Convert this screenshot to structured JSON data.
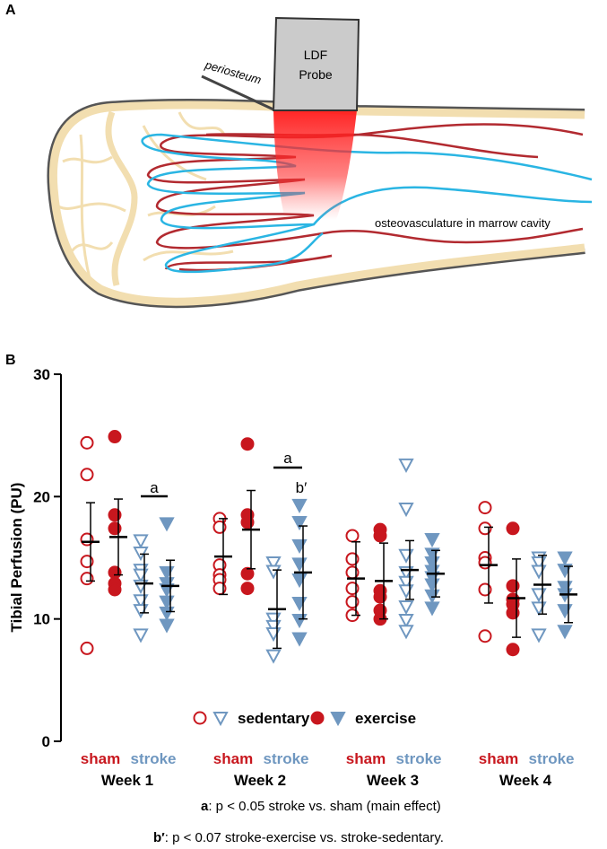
{
  "panel_a": {
    "label": "A",
    "probe_lines": [
      "LDF",
      "Probe"
    ],
    "periosteum": "periosteum",
    "caption": "osteovasculature in marrow cavity"
  },
  "panel_b": {
    "label": "B"
  },
  "chart_data": {
    "type": "dot-plot",
    "y_label": "Tibial Perfusion (PU)",
    "ylim": [
      0,
      30
    ],
    "yticks": [
      0,
      10,
      20,
      30
    ],
    "categories": [
      "Week 1",
      "Week 2",
      "Week 3",
      "Week 4"
    ],
    "subgroups": [
      {
        "label": "sham",
        "color": "#c8171e"
      },
      {
        "label": "stroke",
        "color": "#6f97c0"
      }
    ],
    "legend": [
      {
        "label": "sedentary",
        "filled": false
      },
      {
        "label": "exercise",
        "filled": true
      }
    ],
    "series": [
      {
        "marker": "circle",
        "filled": false,
        "color": "#c8171e",
        "points": [
          [
            24.4,
            21.8,
            16.5,
            14.7,
            13.3,
            7.6
          ],
          [
            18.2,
            17.5,
            14.4,
            13.6,
            13.2,
            12.5
          ],
          [
            16.8,
            14.9,
            13.8,
            12.5,
            11.4,
            10.3
          ],
          [
            19.1,
            17.4,
            15.0,
            14.6,
            12.4,
            8.6
          ]
        ],
        "mean": [
          16.3,
          15.1,
          13.3,
          14.4
        ],
        "sd": [
          3.2,
          3.1,
          3.0,
          3.1
        ]
      },
      {
        "marker": "circle",
        "filled": true,
        "color": "#c8171e",
        "points": [
          [
            24.9,
            18.5,
            17.4,
            13.8,
            12.9,
            12.4
          ],
          [
            24.3,
            18.5,
            17.9,
            13.7,
            12.5
          ],
          [
            17.3,
            16.8,
            12.3,
            11.8,
            10.7,
            10.0
          ],
          [
            17.4,
            12.7,
            11.6,
            11.2,
            10.5,
            7.5
          ]
        ],
        "mean": [
          16.7,
          17.3,
          13.1,
          11.7
        ],
        "sd": [
          3.1,
          3.2,
          3.1,
          3.2
        ]
      },
      {
        "marker": "triangle",
        "filled": false,
        "color": "#6f97c0",
        "points": [
          [
            16.4,
            15.4,
            14.0,
            13.6,
            12.7,
            11.5,
            10.7,
            8.7
          ],
          [
            14.6,
            13.9,
            10.0,
            9.4,
            8.8,
            7.0
          ],
          [
            22.6,
            19.0,
            15.2,
            13.8,
            13.0,
            12.3,
            11.0,
            9.9,
            9.0
          ],
          [
            15.0,
            14.6,
            13.9,
            12.0,
            10.9,
            8.7
          ]
        ],
        "mean": [
          12.9,
          10.8,
          14.0,
          12.8
        ],
        "sd": [
          2.4,
          3.2,
          2.4,
          2.4
        ]
      },
      {
        "marker": "triangle",
        "filled": true,
        "color": "#6f97c0",
        "points": [
          [
            17.8,
            13.8,
            12.9,
            12.4,
            11.4,
            10.5,
            9.5
          ],
          [
            19.3,
            17.9,
            16.0,
            14.5,
            13.2,
            11.3,
            9.9,
            8.4
          ],
          [
            16.5,
            15.3,
            14.6,
            13.9,
            13.4,
            12.8,
            11.9,
            10.9
          ],
          [
            15.0,
            14.0,
            12.6,
            12.0,
            10.7,
            9.0
          ]
        ],
        "mean": [
          12.7,
          13.8,
          13.7,
          12.0
        ],
        "sd": [
          2.1,
          3.8,
          1.9,
          2.3
        ]
      }
    ],
    "annotations": [
      {
        "label": "a"
      },
      {
        "label": "a"
      },
      {
        "label": "b′"
      }
    ],
    "footnotes": [
      {
        "key": "a",
        "text": ": p < 0.05 stroke vs. sham (main effect)"
      },
      {
        "key": "b′",
        "text": ": p < 0.07 stroke-exercise vs. stroke-sedentary."
      }
    ]
  }
}
